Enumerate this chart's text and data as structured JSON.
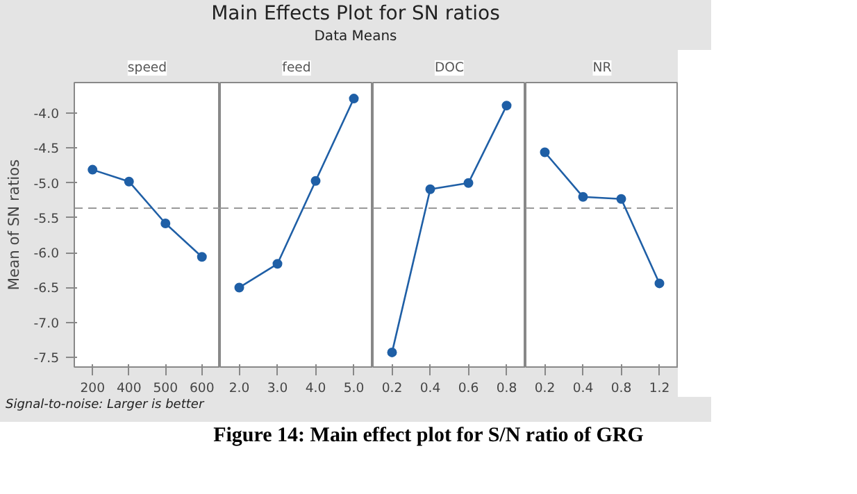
{
  "chart_data": [
    {
      "type": "line",
      "ylabel": "Mean of SN ratios",
      "xlabel": "speed",
      "annotations": [
        "Main Effects Plot for SN ratios",
        "Data Means",
        "Signal-to-noise: Larger is better",
        "Figure 14: Main effect plot for S/N ratio of GRG"
      ],
      "categories": [
        "200",
        "400",
        "500",
        "600"
      ],
      "series": [
        {
          "color": "#1f5fa6",
          "values": [
            -4.81,
            -4.98,
            -5.58,
            -6.06
          ]
        }
      ],
      "ylim": [
        -7.64,
        -3.56
      ],
      "yticks": [
        {
          "value": -4.0,
          "label": "-4.0"
        },
        -4.5,
        {
          "value": -5.0,
          "label": "-5.0"
        },
        -5.5,
        {
          "value": -6.0,
          "label": "-6.0"
        },
        -6.5,
        {
          "value": -7.0,
          "label": "-7.0"
        },
        -7.5
      ],
      "marker": "circle",
      "line_style": "solid",
      "grid": false,
      "ref_lines": [
        {
          "axis": "y",
          "value": -5.36,
          "color": "#999999",
          "line_style": "dashed"
        }
      ]
    },
    {
      "type": "line",
      "xlabel": "feed",
      "categories": [
        "2.0",
        "3.0",
        "4.0",
        "5.0"
      ],
      "series": [
        {
          "color": "#1f5fa6",
          "values": [
            -6.5,
            -6.16,
            -4.97,
            -3.79
          ]
        }
      ],
      "ylim": [
        -7.64,
        -3.56
      ],
      "yticks": [
        -4.0,
        -4.5,
        -5.0,
        -5.5,
        -6.0,
        -6.5,
        -7.0,
        -7.5
      ],
      "tick_labels": "x",
      "marker": "circle",
      "line_style": "solid",
      "grid": false,
      "ref_lines": [
        {
          "axis": "y",
          "value": -5.36,
          "color": "#999999",
          "line_style": "dashed"
        }
      ]
    },
    {
      "type": "line",
      "xlabel": "DOC",
      "categories": [
        "0.2",
        "0.4",
        "0.6",
        "0.8"
      ],
      "series": [
        {
          "color": "#1f5fa6",
          "values": [
            -7.43,
            -5.09,
            -5.0,
            -3.89
          ]
        }
      ],
      "ylim": [
        -7.64,
        -3.56
      ],
      "yticks": [
        -4.0,
        -4.5,
        -5.0,
        -5.5,
        -6.0,
        -6.5,
        -7.0,
        -7.5
      ],
      "tick_labels": "x",
      "marker": "circle",
      "line_style": "solid",
      "grid": false,
      "ref_lines": [
        {
          "axis": "y",
          "value": -5.36,
          "color": "#999999",
          "line_style": "dashed"
        }
      ]
    },
    {
      "type": "line",
      "xlabel": "NR",
      "categories": [
        "0.2",
        "0.4",
        "0.8",
        "1.2"
      ],
      "series": [
        {
          "color": "#1f5fa6",
          "values": [
            -4.56,
            -5.2,
            -5.23,
            -6.44
          ]
        }
      ],
      "ylim": [
        -7.64,
        -3.56
      ],
      "yticks": [
        -4.0,
        -4.5,
        -5.0,
        -5.5,
        -6.0,
        -6.5,
        -7.0,
        -7.5
      ],
      "tick_labels": "x",
      "marker": "circle",
      "line_style": "solid",
      "grid": false,
      "ref_lines": [
        {
          "axis": "y",
          "value": -5.36,
          "color": "#999999",
          "line_style": "dashed"
        }
      ]
    }
  ]
}
